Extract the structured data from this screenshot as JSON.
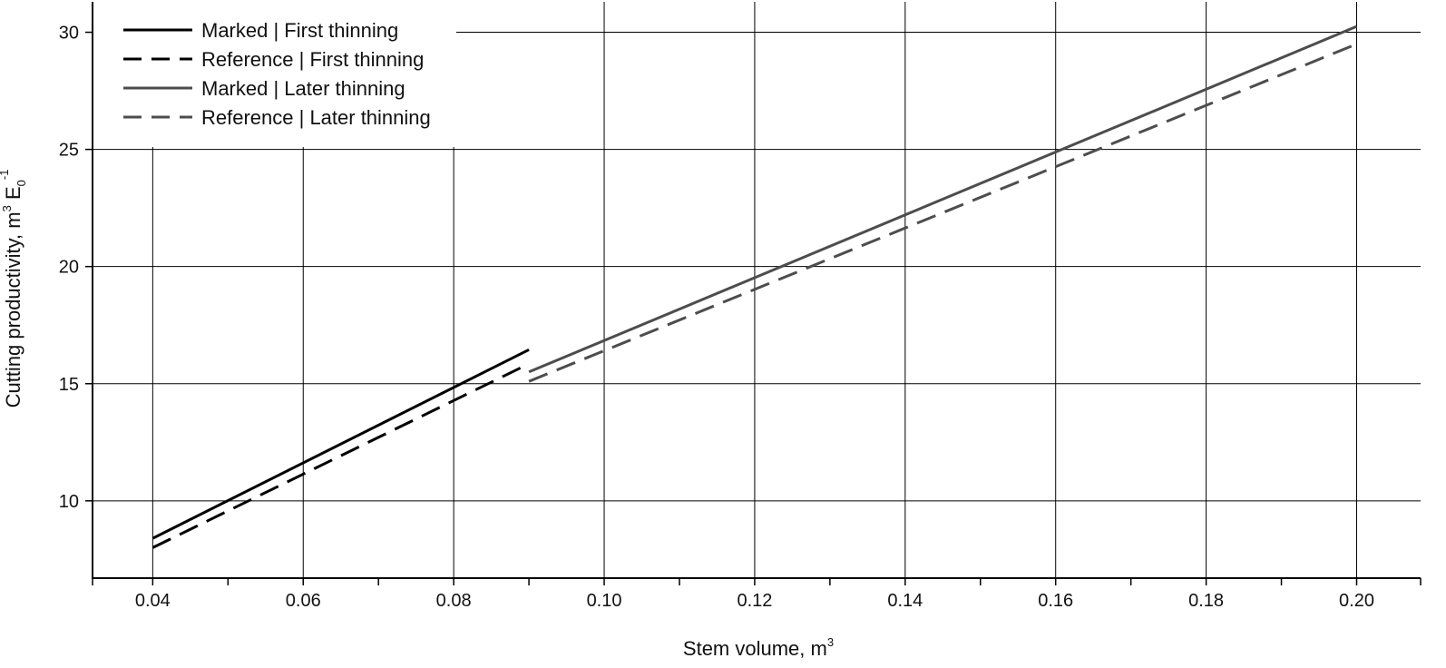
{
  "chart_data": {
    "type": "line",
    "title": "",
    "xlabel": "Stem volume, m",
    "xlabel_sup": "3",
    "ylabel": {
      "text": "Cutting productivity, m",
      "sup1": "3",
      "e": " E",
      "sub": "0",
      "sup2": "-1"
    },
    "xlim": [
      0.032,
      0.2085
    ],
    "ylim": [
      6.7,
      31.3
    ],
    "x_ticks": [
      0.04,
      0.06,
      0.08,
      0.1,
      0.12,
      0.14,
      0.16,
      0.18,
      0.2
    ],
    "x_tick_labels": [
      "0.04",
      "0.06",
      "0.08",
      "0.10",
      "0.12",
      "0.14",
      "0.16",
      "0.18",
      "0.20"
    ],
    "y_ticks": [
      10,
      15,
      20,
      25,
      30
    ],
    "y_tick_labels": [
      "10",
      "15",
      "20",
      "25",
      "30"
    ],
    "grid": true,
    "legend_position": "top-left",
    "series": [
      {
        "name": "Marked | First thinning",
        "color": "#000000",
        "dash": false,
        "x": [
          0.04,
          0.09
        ],
        "y": [
          8.4,
          16.45
        ]
      },
      {
        "name": "Reference | First thinning",
        "color": "#000000",
        "dash": true,
        "x": [
          0.04,
          0.09
        ],
        "y": [
          8.0,
          15.85
        ]
      },
      {
        "name": "Marked | Later thinning",
        "color": "#4d4d4d",
        "dash": false,
        "x": [
          0.09,
          0.2
        ],
        "y": [
          15.5,
          30.25
        ]
      },
      {
        "name": "Reference | Later thinning",
        "color": "#4d4d4d",
        "dash": true,
        "x": [
          0.09,
          0.2
        ],
        "y": [
          15.1,
          29.5
        ]
      }
    ]
  }
}
